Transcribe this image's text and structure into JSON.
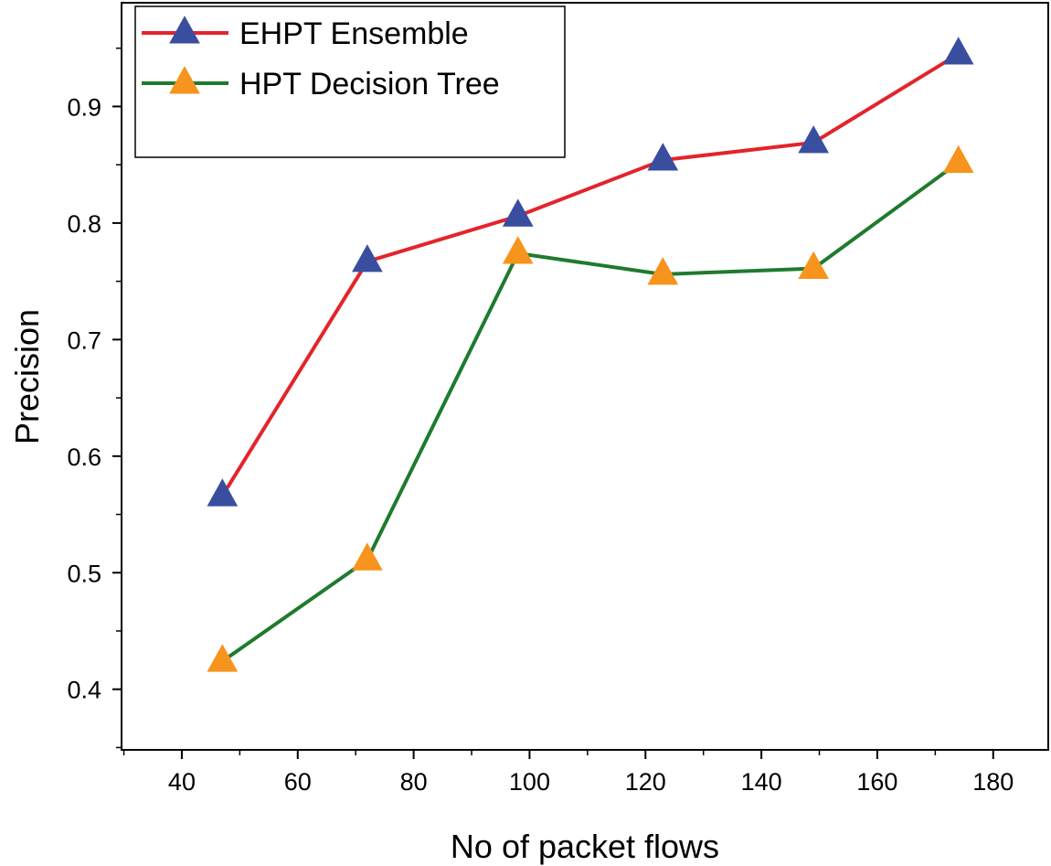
{
  "chart_data": {
    "type": "line",
    "title": "",
    "xlabel": "No of packet flows",
    "ylabel": "Precision",
    "xlim": [
      29.6,
      189.5
    ],
    "ylim": [
      0.348,
      0.989
    ],
    "xticks": [
      40,
      60,
      80,
      100,
      120,
      140,
      160,
      180
    ],
    "yticks": [
      0.4,
      0.5,
      0.6,
      0.7,
      0.8,
      0.9
    ],
    "xtick_labels": [
      "40",
      "60",
      "80",
      "100",
      "120",
      "140",
      "160",
      "180"
    ],
    "ytick_labels": [
      "0.4",
      "0.5",
      "0.6",
      "0.7",
      "0.8",
      "0.9"
    ],
    "grid": false,
    "legend_position": "top-left",
    "series": [
      {
        "name": "EHPT Ensemble",
        "line_color": "#e3242b",
        "marker_color": "#3a4ea0",
        "marker": "triangle",
        "x": [
          47,
          72,
          98,
          123,
          149,
          174
        ],
        "y": [
          0.566,
          0.767,
          0.806,
          0.854,
          0.869,
          0.945
        ]
      },
      {
        "name": "HPT Decision Tree",
        "line_color": "#1e7b2e",
        "marker_color": "#f7941d",
        "marker": "triangle",
        "x": [
          47,
          72,
          98,
          123,
          149,
          174
        ],
        "y": [
          0.424,
          0.511,
          0.774,
          0.756,
          0.761,
          0.852
        ]
      }
    ]
  }
}
